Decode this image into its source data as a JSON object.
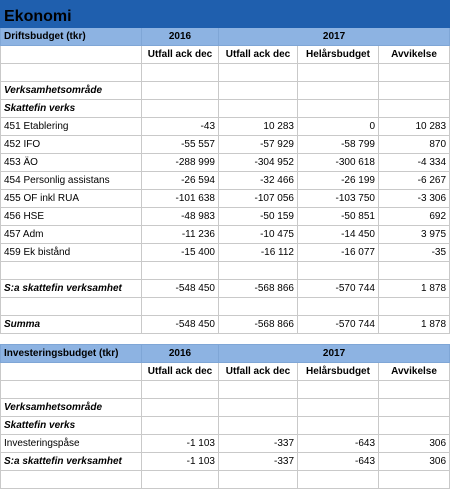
{
  "title": "Ekonomi",
  "drift": {
    "header": "Driftsbudget (tkr)",
    "year1": "2016",
    "year2": "2017",
    "subheaders": [
      "Utfall ack dec",
      "Utfall ack dec",
      "Helårsbudget",
      "Avvikelse"
    ],
    "section": "Verksamhetsområde",
    "group": "Skattefin verks",
    "rows": [
      [
        "451 Etablering",
        "-43",
        "10 283",
        "0",
        "10 283"
      ],
      [
        "452 IFO",
        "-55 557",
        "-57 929",
        "-58 799",
        "870"
      ],
      [
        "453 ÄO",
        "-288 999",
        "-304 952",
        "-300 618",
        "-4 334"
      ],
      [
        "454 Personlig assistans",
        "-26 594",
        "-32 466",
        "-26 199",
        "-6 267"
      ],
      [
        "455 OF inkl RUA",
        "-101 638",
        "-107 056",
        "-103 750",
        "-3 306"
      ],
      [
        "456 HSE",
        "-48 983",
        "-50 159",
        "-50 851",
        "692"
      ],
      [
        "457 Adm",
        "-11 236",
        "-10 475",
        "-14 450",
        "3 975"
      ],
      [
        "459 Ek bistånd",
        "-15 400",
        "-16 112",
        "-16 077",
        "-35"
      ]
    ],
    "subtotal": [
      "S:a skattefin verksamhet",
      "-548 450",
      "-568 866",
      "-570 744",
      "1 878"
    ],
    "total": [
      "Summa",
      "-548 450",
      "-568 866",
      "-570 744",
      "1 878"
    ]
  },
  "invest": {
    "header": "Investeringsbudget (tkr)",
    "year1": "2016",
    "year2": "2017",
    "subheaders": [
      "Utfall ack dec",
      "Utfall ack dec",
      "Helårsbudget",
      "Avvikelse"
    ],
    "section": "Verksamhetsområde",
    "group": "Skattefin verks",
    "rows": [
      [
        "Investeringspåse",
        "-1 103",
        "-337",
        "-643",
        "306"
      ]
    ],
    "subtotal": [
      "S:a skattefin verksamhet",
      "-1 103",
      "-337",
      "-643",
      "306"
    ]
  }
}
